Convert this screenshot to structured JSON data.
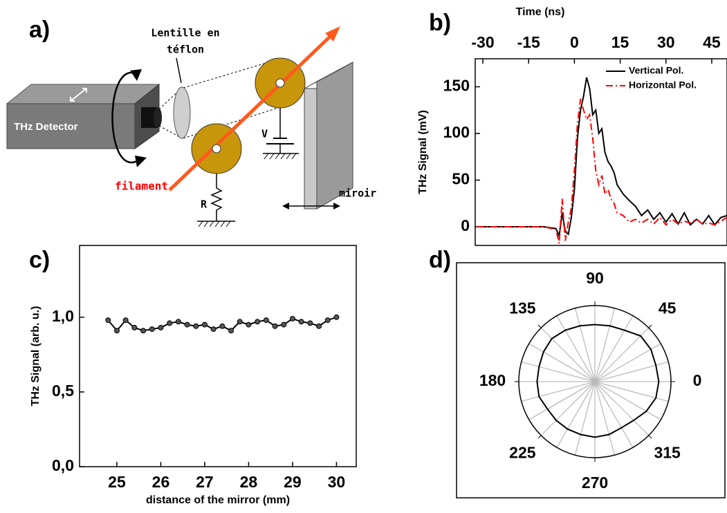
{
  "diagram": {
    "panel_label": "a)",
    "lens_label": [
      "Lentille en",
      "téflon"
    ],
    "detector_label": "THz Detector",
    "filament_label": "filament",
    "voltage_label": "V",
    "resistor_label": "R",
    "mirror_label": "miroir"
  },
  "chart_data": [
    {
      "type": "line",
      "panel_label": "b)",
      "x_label": "Time (ns)",
      "y_label": "THz Signal (mV)",
      "x": [
        -32,
        -25,
        -20,
        -15,
        -10,
        -6,
        -5,
        -4,
        -3,
        -2,
        -1,
        0,
        1,
        2,
        3,
        4,
        5,
        6,
        7,
        8,
        9,
        10,
        11,
        12,
        13,
        14,
        16,
        18,
        20,
        22,
        24,
        26,
        28,
        30,
        32,
        34,
        36,
        38,
        40,
        42,
        44,
        46,
        48,
        50
      ],
      "series": [
        {
          "name": "Vertical Pol.",
          "color": "#000000",
          "linestyle": "solid",
          "values": [
            0,
            0,
            0,
            0,
            0,
            -2,
            -10,
            15,
            -5,
            -8,
            10,
            40,
            95,
            125,
            140,
            160,
            148,
            120,
            125,
            100,
            105,
            80,
            70,
            65,
            58,
            45,
            35,
            28,
            22,
            12,
            18,
            8,
            15,
            5,
            14,
            3,
            15,
            2,
            8,
            3,
            12,
            2,
            10,
            12
          ]
        },
        {
          "name": "Horizontal Pol.",
          "color": "#ff0000",
          "linestyle": "dashdot",
          "values": [
            0,
            0,
            0,
            0,
            0,
            -3,
            -18,
            30,
            -15,
            5,
            20,
            60,
            110,
            137,
            125,
            115,
            120,
            95,
            60,
            45,
            55,
            35,
            40,
            30,
            25,
            15,
            12,
            5,
            8,
            4,
            8,
            3,
            10,
            2,
            8,
            3,
            6,
            4,
            8,
            3,
            4,
            2,
            6,
            10
          ]
        }
      ],
      "xlim": [
        -32.5,
        50
      ],
      "xticks": [
        -30,
        -15,
        0,
        15,
        30,
        45
      ],
      "x_axis_side": "top",
      "ylim": [
        -20,
        180
      ],
      "yticks": [
        0,
        50,
        100,
        150
      ],
      "legend": "upper right"
    },
    {
      "type": "line",
      "panel_label": "c)",
      "x_label": "distance of the mirror (mm)",
      "y_label": "THz Signal (arb. u.)",
      "x": [
        24.8,
        25.0,
        25.2,
        25.4,
        25.6,
        25.8,
        26.0,
        26.2,
        26.4,
        26.6,
        26.8,
        27.0,
        27.2,
        27.4,
        27.6,
        27.8,
        28.0,
        28.2,
        28.4,
        28.6,
        28.8,
        29.0,
        29.2,
        29.4,
        29.6,
        29.8,
        30.0
      ],
      "series": [
        {
          "color": "#000000",
          "linestyle": "solid",
          "marker": "circle",
          "values": [
            0.98,
            0.91,
            0.98,
            0.93,
            0.91,
            0.92,
            0.93,
            0.96,
            0.97,
            0.95,
            0.94,
            0.95,
            0.92,
            0.94,
            0.91,
            0.97,
            0.95,
            0.97,
            0.98,
            0.94,
            0.95,
            0.99,
            0.97,
            0.96,
            0.94,
            0.98,
            1.0
          ]
        }
      ],
      "xlim": [
        24.15,
        30.45
      ],
      "xticks": [
        25,
        26,
        27,
        28,
        29,
        30
      ],
      "x_axis_side": "bottom",
      "ylim": [
        0,
        1.48
      ],
      "yticks": [
        {
          "value": 0,
          "label": "0,0"
        },
        {
          "value": 0.5,
          "label": "0,5"
        },
        {
          "value": 1.0,
          "label": "1,0"
        }
      ]
    },
    {
      "type": "polar",
      "panel_label": "d)",
      "theta": [
        0,
        15,
        30,
        45,
        60,
        75,
        90,
        105,
        120,
        135,
        150,
        165,
        180,
        195,
        210,
        225,
        240,
        255,
        270,
        285,
        300,
        315,
        330,
        345
      ],
      "series": [
        {
          "color": "#000000",
          "values": [
            0.84,
            0.83,
            0.85,
            0.85,
            0.78,
            0.76,
            0.75,
            0.76,
            0.78,
            0.8,
            0.78,
            0.76,
            0.76,
            0.76,
            0.72,
            0.72,
            0.72,
            0.72,
            0.73,
            0.72,
            0.7,
            0.72,
            0.78,
            0.83
          ]
        }
      ],
      "rlim": [
        0,
        1
      ],
      "theta_ticks": [
        0,
        45,
        90,
        135,
        180,
        225,
        270,
        315
      ]
    }
  ]
}
